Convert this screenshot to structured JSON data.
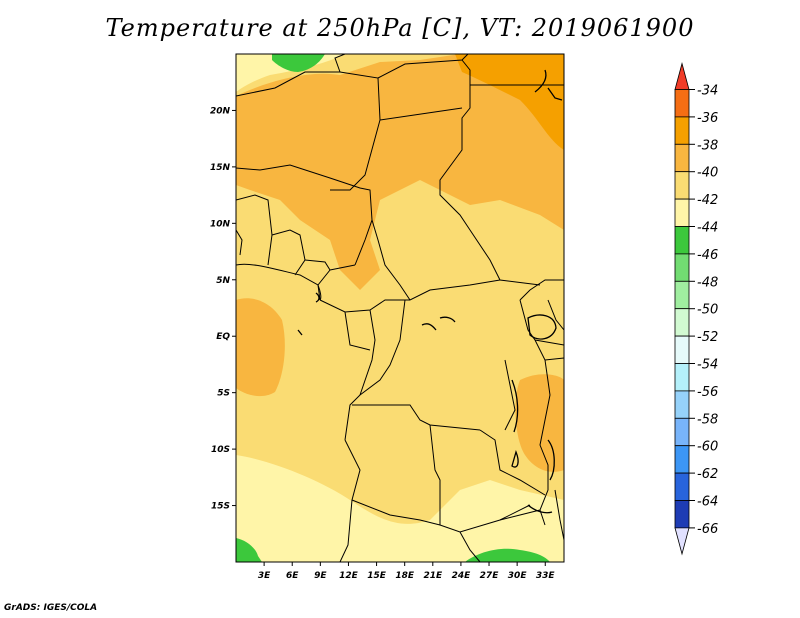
{
  "title": "Temperature at 250hPa [C], VT: 2019061900",
  "footer": "GrADS: IGES/COLA",
  "map": {
    "lon_range": [
      0,
      35
    ],
    "lat_range": [
      -20,
      25
    ],
    "x_ticks": [
      "3E",
      "6E",
      "9E",
      "12E",
      "15E",
      "18E",
      "21E",
      "24E",
      "27E",
      "30E",
      "33E"
    ],
    "x_tick_lons": [
      3,
      6,
      9,
      12,
      15,
      18,
      21,
      24,
      27,
      30,
      33
    ],
    "y_ticks": [
      "20N",
      "15N",
      "10N",
      "5N",
      "EQ",
      "5S",
      "10S",
      "15S"
    ],
    "y_tick_lats": [
      20,
      15,
      10,
      5,
      0,
      -5,
      -10,
      -15
    ]
  },
  "colorbar": {
    "labels": [
      "-34",
      "-36",
      "-38",
      "-40",
      "-42",
      "-44",
      "-46",
      "-48",
      "-50",
      "-52",
      "-54",
      "-56",
      "-58",
      "-60",
      "-62",
      "-64",
      "-66"
    ],
    "colors": [
      "#f03c28",
      "#f56e14",
      "#f5a000",
      "#f8b640",
      "#fadc73",
      "#fff5a8",
      "#3cc83c",
      "#72dc72",
      "#a0eea0",
      "#d2fad2",
      "#e6fafa",
      "#b4f0fa",
      "#96d2fa",
      "#78b4fa",
      "#3c96f5",
      "#2864dc",
      "#1e3cb4",
      "#101478",
      "#e1e1ff"
    ]
  }
}
